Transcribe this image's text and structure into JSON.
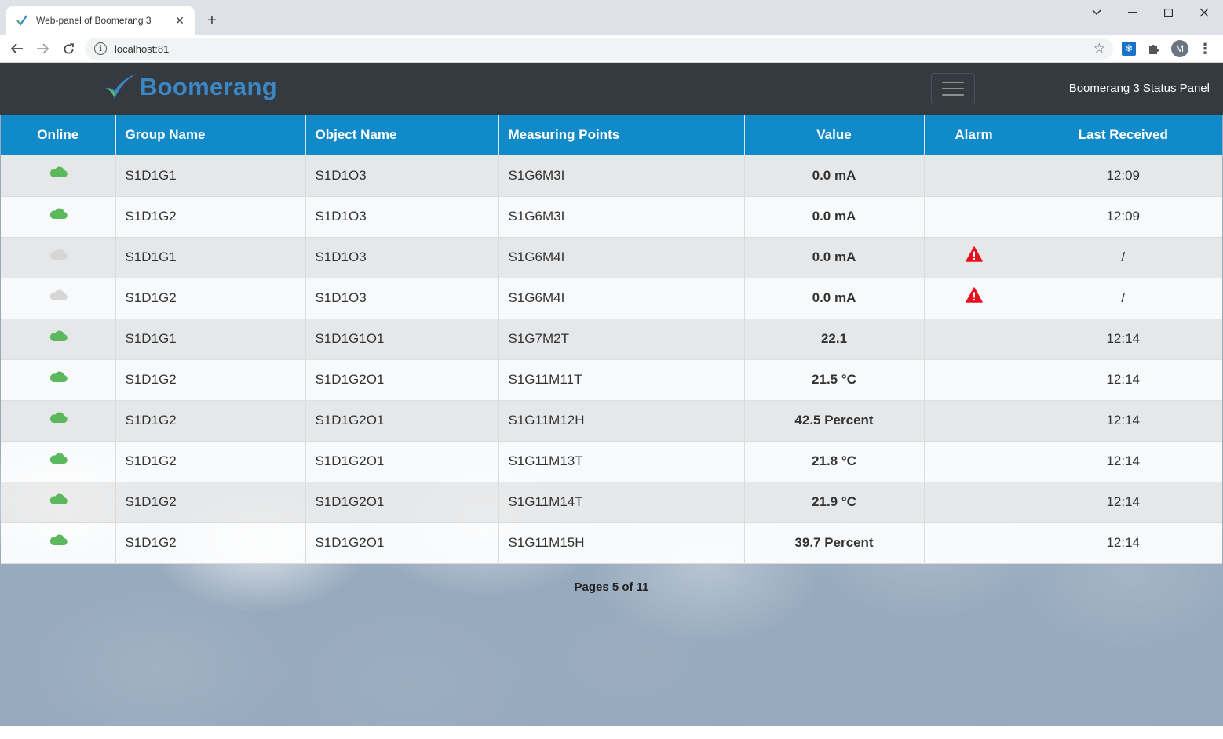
{
  "browser": {
    "tab_title": "Web-panel of Boomerang 3",
    "url": "localhost:81",
    "avatar_initial": "M"
  },
  "header": {
    "brand": "Boomerang",
    "panel_title": "Boomerang 3 Status Panel"
  },
  "table": {
    "columns": [
      "Online",
      "Group Name",
      "Object Name",
      "Measuring Points",
      "Value",
      "Alarm",
      "Last Received"
    ],
    "rows": [
      {
        "online": true,
        "group": "S1D1G1",
        "object": "S1D1O3",
        "point": "S1G6M3I",
        "value": "0.0 mA",
        "alarm": false,
        "last": "12:09"
      },
      {
        "online": true,
        "group": "S1D1G2",
        "object": "S1D1O3",
        "point": "S1G6M3I",
        "value": "0.0 mA",
        "alarm": false,
        "last": "12:09"
      },
      {
        "online": false,
        "group": "S1D1G1",
        "object": "S1D1O3",
        "point": "S1G6M4I",
        "value": "0.0 mA",
        "alarm": true,
        "last": "/"
      },
      {
        "online": false,
        "group": "S1D1G2",
        "object": "S1D1O3",
        "point": "S1G6M4I",
        "value": "0.0 mA",
        "alarm": true,
        "last": "/"
      },
      {
        "online": true,
        "group": "S1D1G1",
        "object": "S1D1G1O1",
        "point": "S1G7M2T",
        "value": "22.1",
        "alarm": false,
        "last": "12:14"
      },
      {
        "online": true,
        "group": "S1D1G2",
        "object": "S1D1G2O1",
        "point": "S1G11M11T",
        "value": "21.5 °C",
        "alarm": false,
        "last": "12:14"
      },
      {
        "online": true,
        "group": "S1D1G2",
        "object": "S1D1G2O1",
        "point": "S1G11M12H",
        "value": "42.5 Percent",
        "alarm": false,
        "last": "12:14"
      },
      {
        "online": true,
        "group": "S1D1G2",
        "object": "S1D1G2O1",
        "point": "S1G11M13T",
        "value": "21.8 °C",
        "alarm": false,
        "last": "12:14"
      },
      {
        "online": true,
        "group": "S1D1G2",
        "object": "S1D1G2O1",
        "point": "S1G11M14T",
        "value": "21.9 °C",
        "alarm": false,
        "last": "12:14"
      },
      {
        "online": true,
        "group": "S1D1G2",
        "object": "S1D1G2O1",
        "point": "S1G11M15H",
        "value": "39.7 Percent",
        "alarm": false,
        "last": "12:14"
      }
    ]
  },
  "pager": {
    "text": "Pages 5 of 11"
  },
  "colors": {
    "online": "#5cb85c",
    "offline": "#d6d6d6",
    "alarm": "#e8101f",
    "header_bg": "#118ac9",
    "navbar_bg": "#343a40"
  }
}
